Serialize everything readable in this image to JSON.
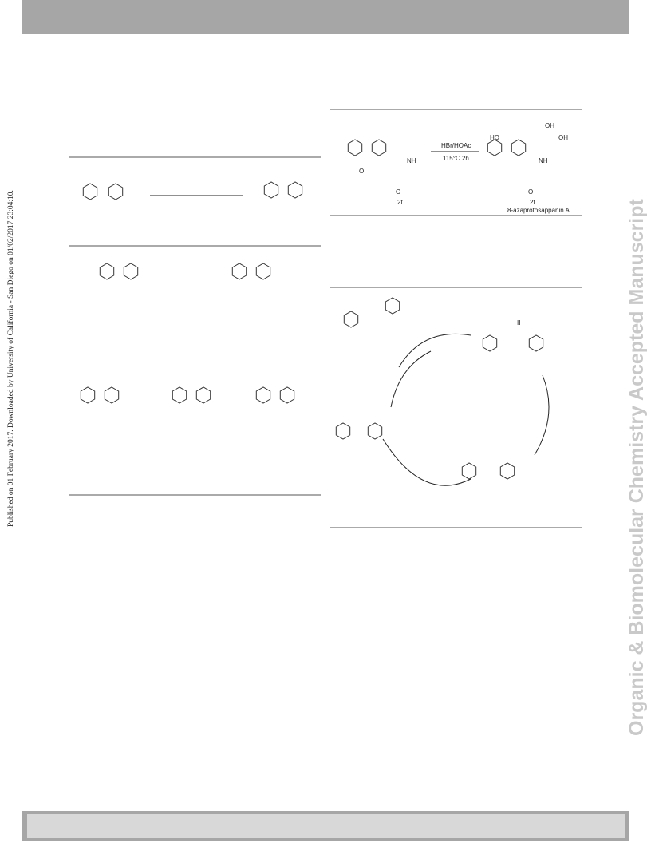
{
  "side_note": "Published on 01 February 2017. Downloaded by University of California - San Diego on 01/02/2017 23:04:10.",
  "watermark": "Organic & Biomolecular Chemistry Accepted Manuscript",
  "scheme": {
    "reagent": "HBr/HOAc",
    "conditions": "115°C 2h",
    "start_label": "2t",
    "product_label": "2t",
    "product_name": "8-azaprotosappanin A",
    "start_atoms": [
      "NH",
      "O",
      "O"
    ],
    "product_atoms": [
      "NH",
      "OH",
      "OH",
      "HO",
      "O"
    ]
  },
  "mechanism": {
    "marker": "II"
  }
}
